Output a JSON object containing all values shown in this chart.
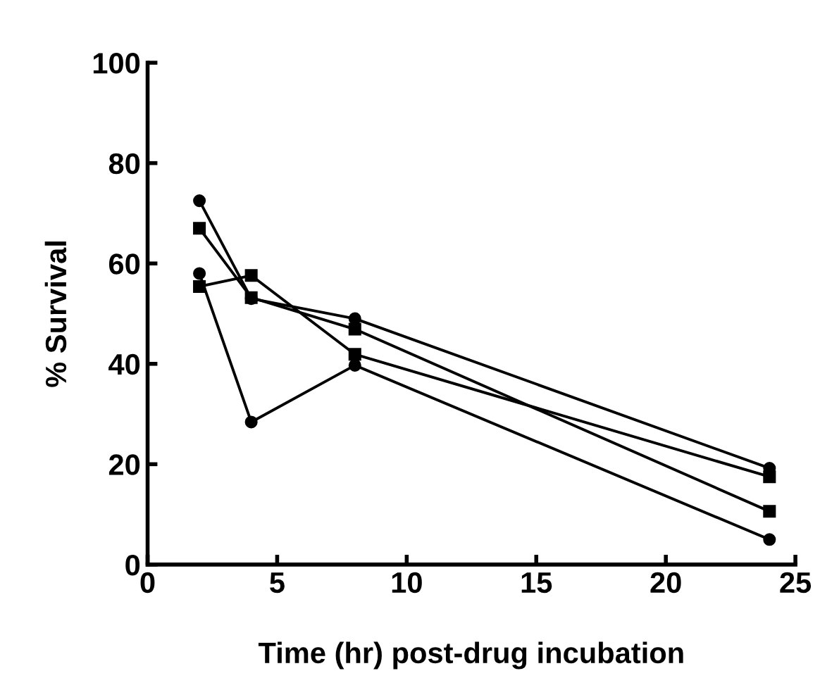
{
  "chart_data": {
    "type": "line",
    "xlabel": "Time (hr) post-drug incubation",
    "ylabel": "% Survival",
    "x": [
      2,
      4,
      8,
      24
    ],
    "series": [
      {
        "color": "#000000",
        "marker": "circle",
        "values": [
          72.5,
          53,
          49,
          19.2
        ]
      },
      {
        "color": "#000000",
        "marker": "square",
        "values": [
          67,
          53.2,
          46.9,
          10.6
        ]
      },
      {
        "color": "#000000",
        "marker": "square",
        "values": [
          55.4,
          57.6,
          41.9,
          17.5
        ]
      },
      {
        "color": "#000000",
        "marker": "circle",
        "values": [
          58,
          28.4,
          39.7,
          5.0
        ]
      }
    ],
    "xlim": [
      0,
      25
    ],
    "xticks": [
      0,
      5,
      10,
      15,
      20,
      25
    ],
    "ylim": [
      0,
      100
    ],
    "yticks": [
      0,
      20,
      40,
      60,
      80,
      100
    ],
    "grid": false,
    "legend": false,
    "line_style": "solid"
  }
}
